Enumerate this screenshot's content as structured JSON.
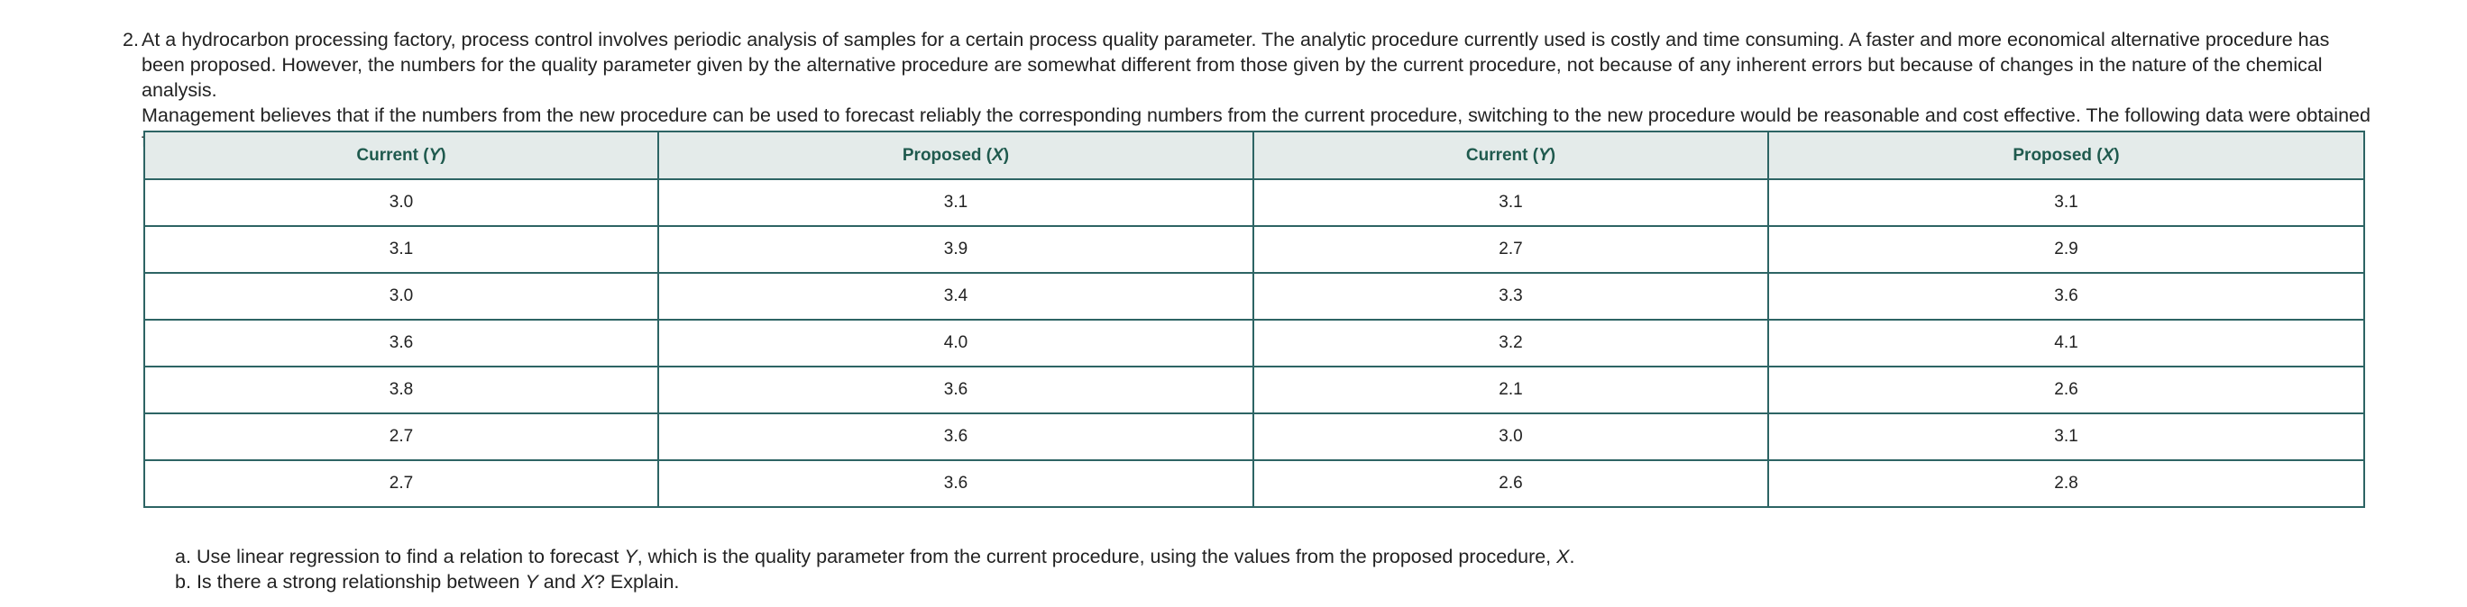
{
  "question": {
    "number": "2.",
    "paragraphs": [
      "At a hydrocarbon processing factory, process control involves periodic analysis of samples for a certain process quality parameter. The analytic procedure currently used is costly and time consuming. A faster and more economical alternative procedure has been proposed. However, the numbers for the quality parameter given by the alternative procedure are somewhat different from those given by the current procedure, not because of any inherent errors but because of changes in the nature of the chemical analysis.",
      "Management believes that if the numbers from the new procedure can be used to forecast reliably the corresponding numbers from the current procedure, switching to the new procedure would be reasonable and cost effective. The following data were obtained for the quality parameter by analyzing samples using both procedures."
    ],
    "table": {
      "headers": [
        {
          "prefix": "Current (",
          "variable": "Y",
          "suffix": ")"
        },
        {
          "prefix": "Proposed (",
          "variable": "X",
          "suffix": ")"
        },
        {
          "prefix": "Current (",
          "variable": "Y",
          "suffix": ")"
        },
        {
          "prefix": "Proposed (",
          "variable": "X",
          "suffix": ")"
        }
      ],
      "rows": [
        [
          "3.0",
          "3.1",
          "3.1",
          "3.1"
        ],
        [
          "3.1",
          "3.9",
          "2.7",
          "2.9"
        ],
        [
          "3.0",
          "3.4",
          "3.3",
          "3.6"
        ],
        [
          "3.6",
          "4.0",
          "3.2",
          "4.1"
        ],
        [
          "3.8",
          "3.6",
          "2.1",
          "2.6"
        ],
        [
          "2.7",
          "3.6",
          "3.0",
          "3.1"
        ],
        [
          "2.7",
          "3.6",
          "2.6",
          "2.8"
        ]
      ]
    },
    "items": [
      {
        "label": "a.",
        "parts": [
          {
            "text": "Use linear regression to find a relation to forecast "
          },
          {
            "text": "Y",
            "italic": true
          },
          {
            "text": ", which is the quality parameter from the current procedure, using the values from the proposed procedure, "
          },
          {
            "text": "X",
            "italic": true
          },
          {
            "text": "."
          }
        ]
      },
      {
        "label": "b.",
        "parts": [
          {
            "text": "Is there a strong relationship between "
          },
          {
            "text": "Y",
            "italic": true
          },
          {
            "text": " and "
          },
          {
            "text": "X",
            "italic": true
          },
          {
            "text": "? Explain."
          }
        ]
      }
    ]
  }
}
